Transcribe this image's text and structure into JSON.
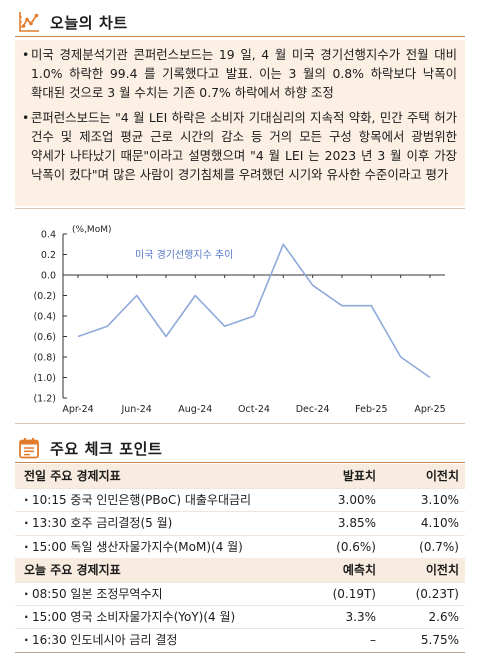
{
  "colors": {
    "accent": "#e27b2b",
    "rule": "#c9844c",
    "panel_bg": "#fcefe4",
    "table_header_bg": "#f8ebdf",
    "frame": "#dcc6ae"
  },
  "chart_section": {
    "title": "오늘의 차트",
    "icon": "line-chart-icon",
    "bullets": [
      "미국 경제분석기관 콘퍼런스보드는 19 일, 4 월 미국 경기선행지수가 전월 대비 1.0% 하락한 99.4 를 기록했다고 발표. 이는 3 월의 0.8% 하락보다 낙폭이 확대된 것으로 3 월 수치는 기존 0.7% 하락에서 하향 조정",
      "콘퍼런스보드는 \"4 월 LEI 하락은 소비자 기대심리의 지속적 약화, 민간 주택 허가 건수 및 제조업 평균 근로 시간의 감소 등 거의 모든 구성 항목에서 광범위한 약세가 나타났기 때문\"이라고 설명했으며 \"4 월 LEI 는 2023 년 3 월 이후 가장 낙폭이 컸다\"며 많은 사람이 경기침체를 우려했던 시기와 유사한 수준이라고 평가"
    ]
  },
  "chart_data": {
    "type": "line",
    "unit_label": "(%,MoM)",
    "x": [
      "Apr-24",
      "May-24",
      "Jun-24",
      "Jul-24",
      "Aug-24",
      "Sep-24",
      "Oct-24",
      "Nov-24",
      "Dec-24",
      "Jan-25",
      "Feb-25",
      "Mar-25",
      "Apr-25"
    ],
    "x_tick_labels": [
      "Apr-24",
      "Jun-24",
      "Aug-24",
      "Oct-24",
      "Dec-24",
      "Feb-25",
      "Apr-25"
    ],
    "y_ticks": [
      0.4,
      0.2,
      0.0,
      -0.2,
      -0.4,
      -0.6,
      -0.8,
      -1.0,
      -1.2
    ],
    "y_tick_labels": [
      "0.4",
      "0.2",
      "0.0",
      "(0.2)",
      "(0.4)",
      "(0.6)",
      "(0.8)",
      "(1.0)",
      "(1.2)"
    ],
    "ylim": [
      -1.2,
      0.4
    ],
    "grid": false,
    "legend": "inside-top-left",
    "series": [
      {
        "name": "미국 경기선행지수 추이",
        "color": "#8eaadb",
        "label_color": "#5478c4",
        "values": [
          -0.6,
          -0.5,
          -0.2,
          -0.6,
          -0.2,
          -0.5,
          -0.4,
          0.3,
          -0.1,
          -0.3,
          -0.3,
          -0.8,
          -1.0
        ]
      }
    ]
  },
  "checkpoints": {
    "title": "주요 체크 포인트",
    "icon": "calendar-icon",
    "tables": [
      {
        "header": {
          "label": "전일 주요 경제지표",
          "col1": "발표치",
          "col2": "이전치"
        },
        "rows": [
          {
            "time": "10:15",
            "name": "중국 인민은행(PBoC) 대출우대금리",
            "col1": "3.00%",
            "col2": "3.10%"
          },
          {
            "time": "13:30",
            "name": "호주 금리결정(5 월)",
            "col1": "3.85%",
            "col2": "4.10%"
          },
          {
            "time": "15:00",
            "name": "독일 생산자물가지수(MoM)(4 월)",
            "col1": "(0.6%)",
            "col2": "(0.7%)"
          }
        ]
      },
      {
        "header": {
          "label": "오늘 주요 경제지표",
          "col1": "예측치",
          "col2": "이전치"
        },
        "rows": [
          {
            "time": "08:50",
            "name": "일본 조정무역수지",
            "col1": "(0.19T)",
            "col2": "(0.23T)"
          },
          {
            "time": "15:00",
            "name": "영국 소비자물가지수(YoY)(4 월)",
            "col1": "3.3%",
            "col2": "2.6%"
          },
          {
            "time": "16:30",
            "name": "인도네시아 금리 결정",
            "col1": "–",
            "col2": "5.75%"
          }
        ]
      }
    ]
  }
}
